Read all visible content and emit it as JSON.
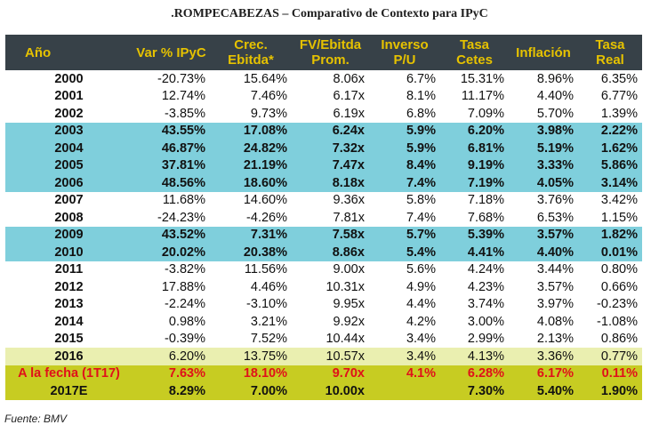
{
  "title": ".ROMPECABEZAS – Comparativo de Contexto para IPyC",
  "headers": {
    "year": "Año",
    "var_ipyc": "Var % IPyC",
    "crec_ebitda": "Crec. Ebitda*",
    "fv_ebitda": "FV/Ebitda Prom.",
    "inverso_pu": "Inverso P/U",
    "tasa_cetes": "Tasa Cetes",
    "inflacion": "Inflación",
    "tasa_real": "Tasa Real"
  },
  "rows": [
    {
      "year": "2000",
      "var": "-20.73%",
      "crec": "15.64%",
      "fv": "8.06x",
      "inv": "6.7%",
      "cetes": "15.31%",
      "infl": "8.96%",
      "real": "6.35%",
      "style": ""
    },
    {
      "year": "2001",
      "var": "12.74%",
      "crec": "7.46%",
      "fv": "6.17x",
      "inv": "8.1%",
      "cetes": "11.17%",
      "infl": "4.40%",
      "real": "6.77%",
      "style": ""
    },
    {
      "year": "2002",
      "var": "-3.85%",
      "crec": "9.73%",
      "fv": "6.19x",
      "inv": "6.8%",
      "cetes": "7.09%",
      "infl": "5.70%",
      "real": "1.39%",
      "style": ""
    },
    {
      "year": "2003",
      "var": "43.55%",
      "crec": "17.08%",
      "fv": "6.24x",
      "inv": "5.9%",
      "cetes": "6.20%",
      "infl": "3.98%",
      "real": "2.22%",
      "style": "blue"
    },
    {
      "year": "2004",
      "var": "46.87%",
      "crec": "24.82%",
      "fv": "7.32x",
      "inv": "5.9%",
      "cetes": "6.81%",
      "infl": "5.19%",
      "real": "1.62%",
      "style": "blue"
    },
    {
      "year": "2005",
      "var": "37.81%",
      "crec": "21.19%",
      "fv": "7.47x",
      "inv": "8.4%",
      "cetes": "9.19%",
      "infl": "3.33%",
      "real": "5.86%",
      "style": "blue"
    },
    {
      "year": "2006",
      "var": "48.56%",
      "crec": "18.60%",
      "fv": "8.18x",
      "inv": "7.4%",
      "cetes": "7.19%",
      "infl": "4.05%",
      "real": "3.14%",
      "style": "blue"
    },
    {
      "year": "2007",
      "var": "11.68%",
      "crec": "14.60%",
      "fv": "9.36x",
      "inv": "5.8%",
      "cetes": "7.18%",
      "infl": "3.76%",
      "real": "3.42%",
      "style": ""
    },
    {
      "year": "2008",
      "var": "-24.23%",
      "crec": "-4.26%",
      "fv": "7.81x",
      "inv": "7.4%",
      "cetes": "7.68%",
      "infl": "6.53%",
      "real": "1.15%",
      "style": ""
    },
    {
      "year": "2009",
      "var": "43.52%",
      "crec": "7.31%",
      "fv": "7.58x",
      "inv": "5.7%",
      "cetes": "5.39%",
      "infl": "3.57%",
      "real": "1.82%",
      "style": "blue"
    },
    {
      "year": "2010",
      "var": "20.02%",
      "crec": "20.38%",
      "fv": "8.86x",
      "inv": "5.4%",
      "cetes": "4.41%",
      "infl": "4.40%",
      "real": "0.01%",
      "style": "blue"
    },
    {
      "year": "2011",
      "var": "-3.82%",
      "crec": "11.56%",
      "fv": "9.00x",
      "inv": "5.6%",
      "cetes": "4.24%",
      "infl": "3.44%",
      "real": "0.80%",
      "style": ""
    },
    {
      "year": "2012",
      "var": "17.88%",
      "crec": "4.46%",
      "fv": "10.31x",
      "inv": "4.9%",
      "cetes": "4.23%",
      "infl": "3.57%",
      "real": "0.66%",
      "style": ""
    },
    {
      "year": "2013",
      "var": "-2.24%",
      "crec": "-3.10%",
      "fv": "9.95x",
      "inv": "4.4%",
      "cetes": "3.74%",
      "infl": "3.97%",
      "real": "-0.23%",
      "style": ""
    },
    {
      "year": "2014",
      "var": "0.98%",
      "crec": "3.21%",
      "fv": "9.92x",
      "inv": "4.2%",
      "cetes": "3.00%",
      "infl": "4.08%",
      "real": "-1.08%",
      "style": ""
    },
    {
      "year": "2015",
      "var": "-0.39%",
      "crec": "7.52%",
      "fv": "10.44x",
      "inv": "3.4%",
      "cetes": "2.99%",
      "infl": "2.13%",
      "real": "0.86%",
      "style": ""
    },
    {
      "year": "2016",
      "var": "6.20%",
      "crec": "13.75%",
      "fv": "10.57x",
      "inv": "3.4%",
      "cetes": "4.13%",
      "infl": "3.36%",
      "real": "0.77%",
      "style": "light"
    },
    {
      "year": "A la fecha (1T17)",
      "var": "7.63%",
      "crec": "18.10%",
      "fv": "9.70x",
      "inv": "4.1%",
      "cetes": "6.28%",
      "infl": "6.17%",
      "real": "0.11%",
      "style": "olive red"
    },
    {
      "year": "2017E",
      "var": "8.29%",
      "crec": "7.00%",
      "fv": "10.00x",
      "inv": "",
      "cetes": "7.30%",
      "infl": "5.40%",
      "real": "1.90%",
      "style": "olive black"
    }
  ],
  "source": "Fuente: BMV"
}
